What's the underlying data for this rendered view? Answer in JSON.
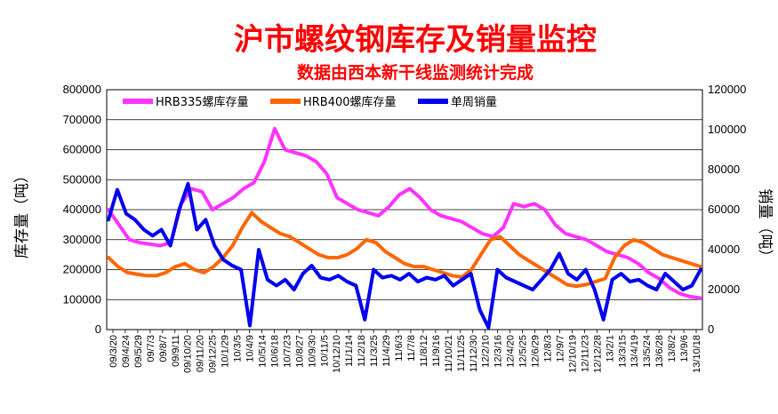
{
  "chart_data": {
    "type": "line",
    "title": "沪市螺纹钢库存及销量监控",
    "subtitle": "数据由西本新干线监测统计完成",
    "ylabel_left": "库存量（吨）",
    "ylabel_right": "销量（吨）",
    "ylim_left": [
      0,
      800000
    ],
    "ylim_right": [
      0,
      120000
    ],
    "yticks_left": [
      "0",
      "100000",
      "200000",
      "300000",
      "400000",
      "500000",
      "600000",
      "700000",
      "800000"
    ],
    "yticks_right": [
      "0",
      "20000",
      "40000",
      "60000",
      "80000",
      "100000",
      "120000"
    ],
    "grid": true,
    "legend_position": "top",
    "x_tick_labels": [
      "09/3/20",
      "09/4/24",
      "09/5/29",
      "09/7/3",
      "09/8/7",
      "09/9/11",
      "09/10/20",
      "09/11/20",
      "09/12/25",
      "10/1/29",
      "10/3/5",
      "10/4/9",
      "10/5/14",
      "10/6/18",
      "10/7/23",
      "10/8/27",
      "10/9/30",
      "10/11/5",
      "10/12/10",
      "11/1/14",
      "11/2/18",
      "11/3/25",
      "11/4/29",
      "11/6/3",
      "11/7/8",
      "11/8/12",
      "11/9/16",
      "11/10/21",
      "11/11/25",
      "11/12/30",
      "12/2/10",
      "12/3/16",
      "12/4/20",
      "12/5/25",
      "12/6/29",
      "12/8/3",
      "12/9/7",
      "12/10/19",
      "12/11/23",
      "12/12/28",
      "13/2/1",
      "13/3/15",
      "13/4/19",
      "13/5/24",
      "13/6/28",
      "13/8/2",
      "13/9/6",
      "13/10/18"
    ],
    "series": [
      {
        "name": "HRB335螺库存量",
        "axis": "left",
        "color": "#ff33ff",
        "values": [
          400000,
          350000,
          300000,
          290000,
          285000,
          280000,
          290000,
          420000,
          470000,
          460000,
          400000,
          420000,
          440000,
          470000,
          490000,
          560000,
          670000,
          600000,
          590000,
          580000,
          560000,
          520000,
          440000,
          420000,
          400000,
          390000,
          380000,
          410000,
          450000,
          470000,
          440000,
          400000,
          380000,
          370000,
          360000,
          340000,
          320000,
          310000,
          340000,
          420000,
          410000,
          420000,
          400000,
          350000,
          320000,
          310000,
          300000,
          280000,
          260000,
          250000,
          240000,
          220000,
          190000,
          170000,
          140000,
          120000,
          110000,
          105000
        ]
      },
      {
        "name": "HRB400螺库存量",
        "axis": "left",
        "color": "#ff6600",
        "values": [
          240000,
          210000,
          190000,
          185000,
          180000,
          180000,
          190000,
          210000,
          220000,
          200000,
          190000,
          210000,
          240000,
          280000,
          340000,
          390000,
          360000,
          340000,
          320000,
          310000,
          290000,
          270000,
          250000,
          240000,
          240000,
          250000,
          270000,
          300000,
          290000,
          260000,
          240000,
          220000,
          210000,
          210000,
          200000,
          190000,
          180000,
          175000,
          200000,
          250000,
          300000,
          310000,
          280000,
          250000,
          230000,
          210000,
          190000,
          170000,
          150000,
          145000,
          150000,
          160000,
          170000,
          240000,
          280000,
          300000,
          290000,
          270000,
          250000,
          240000,
          230000,
          220000,
          210000
        ]
      },
      {
        "name": "单周销量",
        "axis": "right",
        "color": "#0000ee",
        "values": [
          55000,
          70000,
          58000,
          55000,
          50000,
          47000,
          50000,
          42000,
          60000,
          73000,
          50000,
          55000,
          42000,
          35000,
          32000,
          30000,
          2000,
          40000,
          25000,
          22000,
          25000,
          20000,
          28000,
          32000,
          26000,
          25000,
          27000,
          24000,
          22000,
          5000,
          30000,
          26000,
          27000,
          25000,
          28000,
          24000,
          26000,
          25000,
          27000,
          22000,
          25000,
          28000,
          10000,
          1000,
          30000,
          26000,
          24000,
          22000,
          20000,
          25000,
          30000,
          38000,
          28000,
          25000,
          30000,
          20000,
          5000,
          25000,
          28000,
          24000,
          25000,
          22000,
          20000,
          28000,
          24000,
          20000,
          22000,
          30000
        ]
      }
    ]
  }
}
